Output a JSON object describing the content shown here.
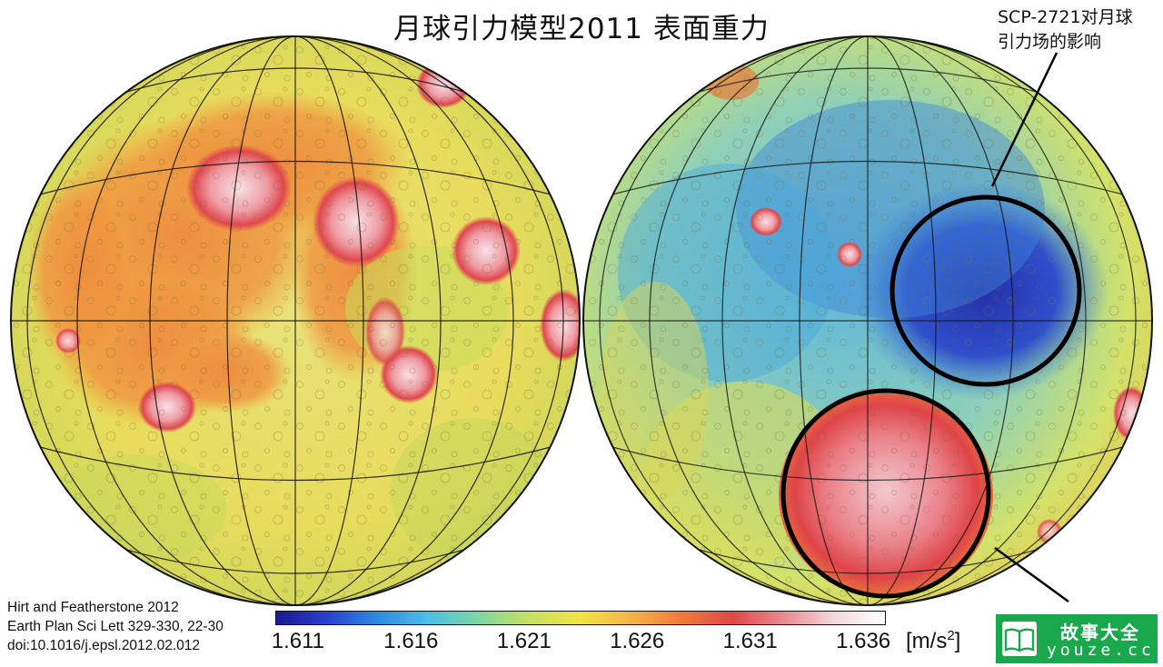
{
  "title": "月球引力模型2011 表面重力",
  "callout": {
    "line1": "SCP-2721对月球",
    "line2": "引力场的影响"
  },
  "citation": {
    "line1": "Hirt and Featherstone 2012",
    "line2": "Earth Plan Sci Lett 329-330, 22-30",
    "line3": "doi:10.1016/j.epsl.2012.02.012"
  },
  "colorbar": {
    "ticks": [
      "1.611",
      "1.616",
      "1.621",
      "1.626",
      "1.631",
      "1.636"
    ],
    "tick_values": [
      1.611,
      1.616,
      1.621,
      1.626,
      1.631,
      1.636
    ],
    "range": [
      1.61,
      1.637
    ],
    "unit_prefix": "[m/s",
    "unit_exp": "2",
    "unit_suffix": "]",
    "colors": [
      "#1a1a8c",
      "#2a3fd0",
      "#2f8ae0",
      "#4cc0e6",
      "#7fd6a0",
      "#c8e060",
      "#f2e24a",
      "#f4b445",
      "#ee7a3c",
      "#e04848",
      "#e88a90",
      "#f4d8dc",
      "#ffffff"
    ]
  },
  "logo": {
    "line1": "故事大全",
    "line2": "youze.cc",
    "icon": "open-book-icon",
    "color": "#1aa84c"
  },
  "map": {
    "left_hemisphere": "near-side",
    "right_hemisphere": "far-side",
    "highlight_circles": 2,
    "colors": {
      "low": "#1c2fb0",
      "mid": "#e8e04a",
      "high": "#e54a4a",
      "peak": "#f6d0d6"
    }
  }
}
